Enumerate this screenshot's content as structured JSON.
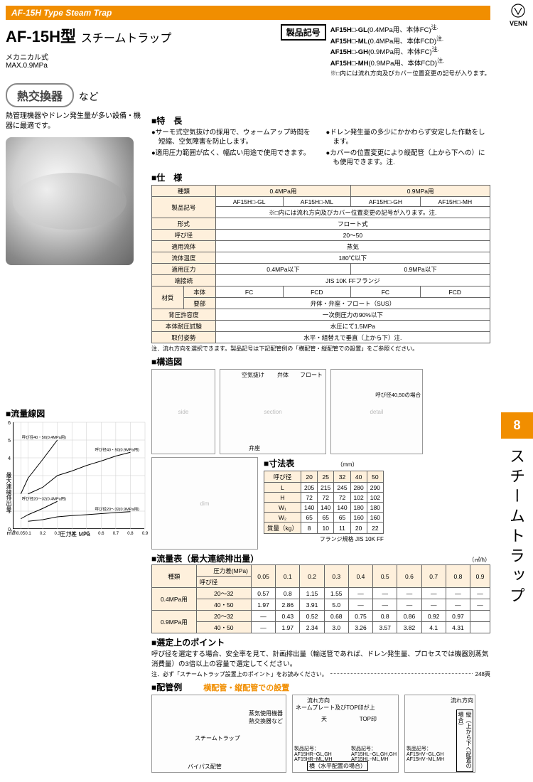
{
  "brand": "VENN",
  "top_bar": "AF-15H Type Steam Trap",
  "side_tab_num": "8",
  "side_label": "スチームトラップ",
  "title_model": "AF-15H",
  "title_type": "型",
  "title_name": "スチームトラップ",
  "spec_line1": "メカニカル式",
  "spec_line2": "MAX.0.9MPa",
  "prod_code_label": "製品記号",
  "prod_codes": [
    {
      "code": "AF15H□-GL",
      "desc": "(0.4MPa用、本体FC)",
      "note": "注."
    },
    {
      "code": "AF15H□-ML",
      "desc": "(0.4MPa用、本体FCD)",
      "note": "注."
    },
    {
      "code": "AF15H□-GH",
      "desc": "(0.9MPa用、本体FC)",
      "note": "注."
    },
    {
      "code": "AF15H□-MH",
      "desc": "(0.9MPa用、本体FCD)",
      "note": "注."
    }
  ],
  "prod_code_note": "※□内には流れ方向及びカバー位置変更の記号が入ります。",
  "pill_text": "熱交換器",
  "pill_suffix": "など",
  "intro_para": "熱管理機器やドレン発生量が多い設備・機器に最適です。",
  "features_heading": "特　長",
  "features_left": [
    "サーモ式空気抜けの採用で、ウォームアップ時間を短縮、空気障害を防止します。",
    "適用圧力範囲が広く、幅広い用途で使用できます。"
  ],
  "features_right": [
    "ドレン発生量の多少にかかわらず安定した作動をします。",
    "カバーの位置変更により縦配管（上から下への）にも使用できます。注."
  ],
  "spec_heading": "仕　様",
  "spec_table": {
    "cols_top": [
      "種類",
      "0.4MPa用",
      "0.9MPa用"
    ],
    "code_row_label": "製品記号",
    "codes": [
      "AF15H□-GL",
      "AF15H□-ML",
      "AF15H□-GH",
      "AF15H□-MH"
    ],
    "code_note": "※□内には流れ方向及びカバー位置変更の記号が入ります。注.",
    "rows": [
      {
        "label": "形式",
        "val": "フロート式",
        "span": 4
      },
      {
        "label": "呼び径",
        "val": "20～50",
        "span": 4
      },
      {
        "label": "適用流体",
        "val": "蒸気",
        "span": 4
      },
      {
        "label": "流体温度",
        "val": "180℃以下",
        "span": 4
      },
      {
        "label": "適用圧力",
        "vals": [
          "0.4MPa以下",
          "0.9MPa以下"
        ]
      },
      {
        "label": "端接続",
        "val": "JIS 10K FFフランジ",
        "span": 4
      }
    ],
    "material_label": "材質",
    "material_rows": [
      {
        "label": "本体",
        "vals": [
          "FC",
          "FCD",
          "FC",
          "FCD"
        ]
      },
      {
        "label": "要部",
        "val": "弁体・弁座・フロート（SUS）",
        "span": 4
      }
    ],
    "tail_rows": [
      {
        "label": "背圧許容度",
        "val": "一次側圧力の90%以下",
        "span": 4
      },
      {
        "label": "本体耐圧試験",
        "val": "水圧にて1.5MPa",
        "span": 4
      },
      {
        "label": "取付姿勢",
        "val": "水平・組替えで垂直（上から下）注.",
        "span": 4
      }
    ]
  },
  "spec_note": "注．流れ方向を選択できます。製品記号は下記配管例の「横配管・縦配管での設置」をご参照ください。",
  "struct_heading": "構造図",
  "struct_labels": {
    "a": "空気抜け",
    "b": "弁体",
    "c": "フロート",
    "d": "弁座",
    "e": "呼び径40,50の場合"
  },
  "dim_heading": "寸法表",
  "dim_unit": "（mm）",
  "dim_table": {
    "cols": [
      "呼び径",
      "20",
      "25",
      "32",
      "40",
      "50"
    ],
    "rows": [
      [
        "L",
        "205",
        "215",
        "245",
        "280",
        "290"
      ],
      [
        "H",
        "72",
        "72",
        "72",
        "102",
        "102"
      ],
      [
        "W₁",
        "140",
        "140",
        "140",
        "180",
        "180"
      ],
      [
        "W₂",
        "65",
        "65",
        "65",
        "160",
        "160"
      ],
      [
        "質量（kg）",
        "8",
        "10",
        "11",
        "20",
        "22"
      ]
    ],
    "note": "フランジ規格 JIS 10K FF"
  },
  "flow_heading": "流量表（最大連続排出量）",
  "flow_unit": "（㎥/h）",
  "flow_table": {
    "head1": "種類",
    "head2": "圧力差(MPa)",
    "head3": "呼び径",
    "pcols": [
      "0.05",
      "0.1",
      "0.2",
      "0.3",
      "0.4",
      "0.5",
      "0.6",
      "0.7",
      "0.8",
      "0.9"
    ],
    "groups": [
      {
        "label": "0.4MPa用",
        "rows": [
          [
            "20～32",
            "0.57",
            "0.8",
            "1.15",
            "1.55",
            "—",
            "—",
            "—",
            "—",
            "—",
            "—"
          ],
          [
            "40・50",
            "1.97",
            "2.86",
            "3.91",
            "5.0",
            "—",
            "—",
            "—",
            "—",
            "—",
            "—"
          ]
        ]
      },
      {
        "label": "0.9MPa用",
        "rows": [
          [
            "20～32",
            "—",
            "0.43",
            "0.52",
            "0.68",
            "0.75",
            "0.8",
            "0.86",
            "0.92",
            "0.97",
            ""
          ],
          [
            "40・50",
            "—",
            "1.97",
            "2.34",
            "3.0",
            "3.26",
            "3.57",
            "3.82",
            "4.1",
            "4.31",
            ""
          ]
        ]
      }
    ]
  },
  "chart_heading": "流量線図",
  "chart": {
    "ylabel": "最大連続排出量",
    "yunit": "㎥/h",
    "xlabel": "圧力差 MPa",
    "ymax": 6,
    "ytick": 1,
    "xmax": 0.9,
    "xticks": [
      "0",
      "0.05",
      "0.1",
      "0.2",
      "0.3",
      "0.4",
      "0.5",
      "0.6",
      "0.7",
      "0.8",
      "0.9"
    ],
    "curves": [
      {
        "label": "呼び径40・50(0.4MPa用)",
        "pts": [
          [
            0.05,
            1.97
          ],
          [
            0.1,
            2.86
          ],
          [
            0.2,
            3.91
          ],
          [
            0.3,
            5.0
          ]
        ]
      },
      {
        "label": "呼び径40・50(0.9MPa用)",
        "pts": [
          [
            0.1,
            1.97
          ],
          [
            0.2,
            2.34
          ],
          [
            0.3,
            3.0
          ],
          [
            0.4,
            3.26
          ],
          [
            0.5,
            3.57
          ],
          [
            0.6,
            3.82
          ],
          [
            0.7,
            4.1
          ],
          [
            0.8,
            4.31
          ]
        ]
      },
      {
        "label": "呼び径20～32(0.4MPa用)",
        "pts": [
          [
            0.05,
            0.57
          ],
          [
            0.1,
            0.8
          ],
          [
            0.2,
            1.15
          ],
          [
            0.3,
            1.55
          ]
        ]
      },
      {
        "label": "呼び径20～32(0.9MPa用)",
        "pts": [
          [
            0.1,
            0.43
          ],
          [
            0.2,
            0.52
          ],
          [
            0.3,
            0.68
          ],
          [
            0.4,
            0.75
          ],
          [
            0.5,
            0.8
          ],
          [
            0.6,
            0.86
          ],
          [
            0.7,
            0.92
          ],
          [
            0.8,
            0.97
          ]
        ]
      }
    ],
    "grid_color": "#ccc",
    "line_color": "#000"
  },
  "sel_heading": "選定上のポイント",
  "sel_text": "呼び径を選定する場合、安全率を見て、計画排出量（輸送管であれば、ドレン発生量、プロセスでは機器別蒸気消費量）の3倍以上の容量で選定してください。",
  "sel_note": "注．必ず「スチームトラップ設置上のポイント」をお読みください。",
  "sel_page": "248頁",
  "piping_heading": "配管例",
  "piping_sub": "横配管・縦配管での設置",
  "piping_labels": {
    "a": "蒸気使用機器\n熱交換器など",
    "b": "スチームトラップ",
    "c": "バイパス配管",
    "d": "流れ方向",
    "e": "ネームプレート及びTOP印が上",
    "f": "天",
    "g": "TOP印",
    "h": "製品記号：\nAF15HR−GL,GH\nAF15HR−ML,MH",
    "i": "横（水平配置の場合）",
    "j": "製品記号：\nAF15HL−GL,GH,GH\nAF15HL−ML,MH",
    "k": "製品記号：\nAF15HV−GL,GH\nAF15HV−ML,MH",
    "l": "縦（上から下へ配置の場合）"
  }
}
